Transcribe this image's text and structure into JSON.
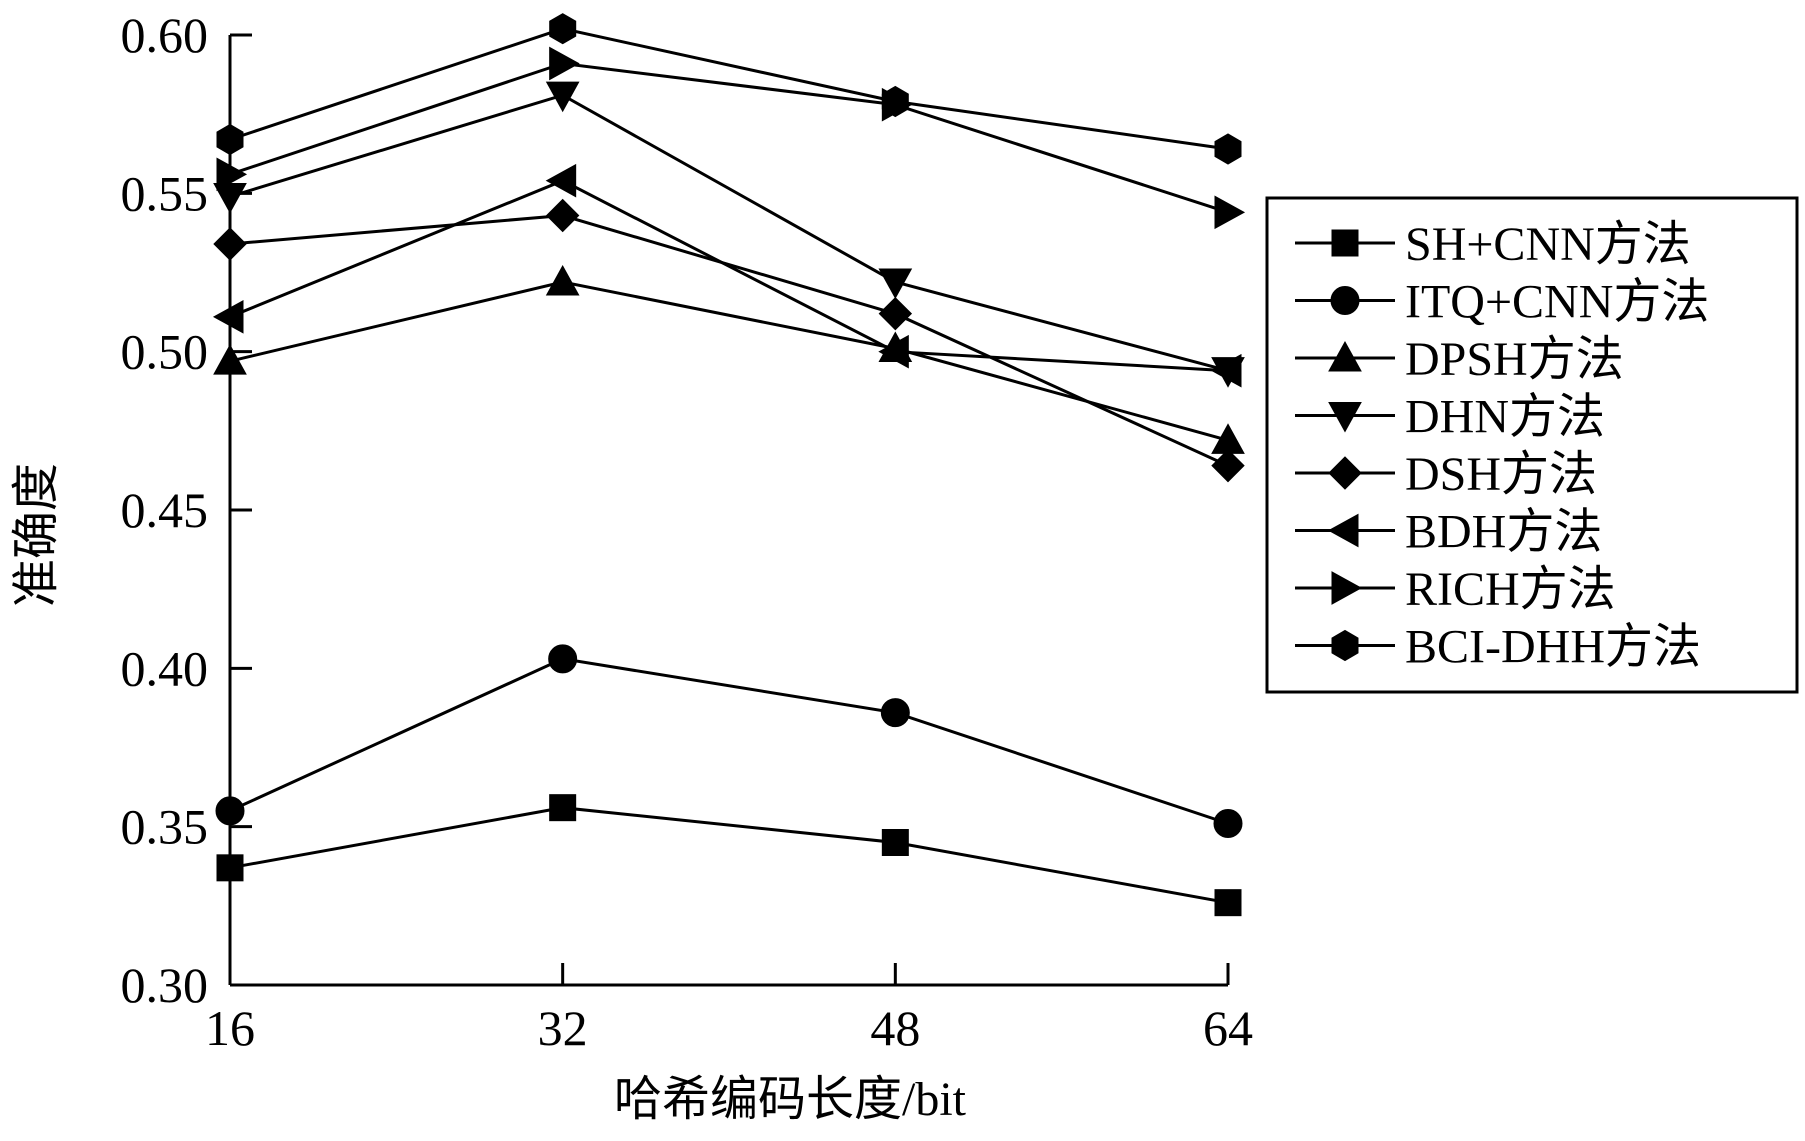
{
  "chart_data": {
    "type": "line",
    "xlabel": "哈希编码长度/bit",
    "ylabel": "准确度",
    "x": [
      16,
      32,
      48,
      64
    ],
    "x_tick_labels": [
      "16",
      "32",
      "48",
      "64"
    ],
    "y_tick_labels": [
      "0.30",
      "0.35",
      "0.40",
      "0.45",
      "0.50",
      "0.55",
      "0.60"
    ],
    "ylim": [
      0.3,
      0.6
    ],
    "grid": false,
    "legend_position": "right",
    "series": [
      {
        "name": "SH+CNN方法",
        "marker": "square",
        "values": [
          0.337,
          0.356,
          0.345,
          0.326
        ]
      },
      {
        "name": "ITQ+CNN方法",
        "marker": "circle",
        "values": [
          0.355,
          0.403,
          0.386,
          0.351
        ]
      },
      {
        "name": "DPSH方法",
        "marker": "triangle-up",
        "values": [
          0.497,
          0.522,
          0.501,
          0.472
        ]
      },
      {
        "name": "DHN方法",
        "marker": "triangle-down",
        "values": [
          0.549,
          0.581,
          0.522,
          0.494
        ]
      },
      {
        "name": "DSH方法",
        "marker": "diamond",
        "values": [
          0.534,
          0.543,
          0.512,
          0.464
        ]
      },
      {
        "name": "BDH方法",
        "marker": "triangle-left",
        "values": [
          0.511,
          0.554,
          0.5,
          0.494
        ]
      },
      {
        "name": "RICH方法",
        "marker": "triangle-right",
        "values": [
          0.556,
          0.591,
          0.578,
          0.544
        ]
      },
      {
        "name": "BCI-DHH方法",
        "marker": "hexagon",
        "values": [
          0.567,
          0.602,
          0.579,
          0.564
        ]
      }
    ]
  }
}
